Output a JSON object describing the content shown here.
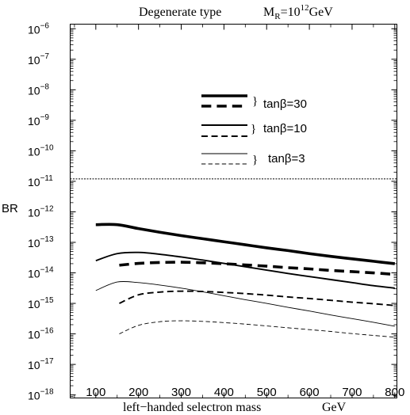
{
  "chart_data": {
    "type": "line",
    "title": "Degenerate  type",
    "title_right": {
      "base": "M",
      "sub": "R",
      "eq": "=10",
      "sup": "12",
      "unit": "GeV"
    },
    "xlabel": "left−handed  selectron  mass",
    "xunit": "GeV",
    "ylabel": "BR",
    "y_scale": "log",
    "xlim": [
      40,
      805
    ],
    "ylim_exp": [
      -18.1,
      -5.85
    ],
    "x_ticks": [
      100,
      200,
      300,
      400,
      500,
      600,
      700,
      800
    ],
    "y_tick_exponents": [
      -6,
      -7,
      -8,
      -9,
      -10,
      -11,
      -12,
      -13,
      -14,
      -15,
      -16,
      -17,
      -18
    ],
    "reference_line": {
      "value": 1.2e-11,
      "style": "dotted"
    },
    "legend": [
      {
        "label": "tanβ=30",
        "weight": "thick"
      },
      {
        "label": "tanβ=10",
        "weight": "medium"
      },
      {
        "label": "tanβ=3",
        "weight": "thin"
      }
    ],
    "series": [
      {
        "tanb": 30,
        "style": "solid",
        "weight": "thick",
        "x": [
          100,
          150,
          200,
          250,
          300,
          350,
          400,
          450,
          500,
          550,
          600,
          650,
          700,
          750,
          800
        ],
        "log10_values": [
          -12.42,
          -12.42,
          -12.55,
          -12.67,
          -12.78,
          -12.88,
          -12.98,
          -13.08,
          -13.18,
          -13.27,
          -13.37,
          -13.46,
          -13.54,
          -13.62,
          -13.7
        ]
      },
      {
        "tanb": 30,
        "style": "dashed",
        "weight": "thick",
        "x": [
          155,
          200,
          250,
          300,
          350,
          400,
          450,
          500,
          550,
          600,
          650,
          700,
          750,
          800
        ],
        "log10_values": [
          -13.75,
          -13.69,
          -13.66,
          -13.65,
          -13.67,
          -13.7,
          -13.74,
          -13.78,
          -13.83,
          -13.87,
          -13.92,
          -13.96,
          -14.0,
          -14.05
        ]
      },
      {
        "tanb": 10,
        "style": "solid",
        "weight": "medium",
        "x": [
          100,
          150,
          200,
          250,
          300,
          350,
          400,
          450,
          500,
          550,
          600,
          650,
          700,
          750,
          800
        ],
        "log10_values": [
          -13.6,
          -13.37,
          -13.33,
          -13.39,
          -13.48,
          -13.58,
          -13.69,
          -13.8,
          -13.91,
          -14.02,
          -14.12,
          -14.22,
          -14.32,
          -14.42,
          -14.5
        ]
      },
      {
        "tanb": 10,
        "style": "dashed",
        "weight": "medium",
        "x": [
          155,
          200,
          250,
          300,
          350,
          400,
          450,
          500,
          550,
          600,
          650,
          700,
          750,
          800
        ],
        "log10_values": [
          -15.0,
          -14.72,
          -14.63,
          -14.6,
          -14.61,
          -14.64,
          -14.68,
          -14.73,
          -14.79,
          -14.84,
          -14.9,
          -14.96,
          -15.01,
          -15.07
        ]
      },
      {
        "tanb": 3,
        "style": "solid",
        "weight": "thin",
        "x": [
          100,
          150,
          200,
          250,
          300,
          350,
          400,
          450,
          500,
          550,
          600,
          650,
          700,
          750,
          800
        ],
        "log10_values": [
          -14.58,
          -14.3,
          -14.32,
          -14.4,
          -14.5,
          -14.62,
          -14.75,
          -14.88,
          -15.0,
          -15.13,
          -15.25,
          -15.38,
          -15.5,
          -15.62,
          -15.75
        ]
      },
      {
        "tanb": 3,
        "style": "dashed",
        "weight": "thin",
        "x": [
          155,
          200,
          250,
          300,
          350,
          400,
          450,
          500,
          550,
          600,
          650,
          700,
          750,
          800
        ],
        "log10_values": [
          -16.0,
          -15.72,
          -15.6,
          -15.57,
          -15.59,
          -15.63,
          -15.68,
          -15.74,
          -15.8,
          -15.86,
          -15.92,
          -15.99,
          -16.05,
          -16.11
        ]
      }
    ]
  }
}
